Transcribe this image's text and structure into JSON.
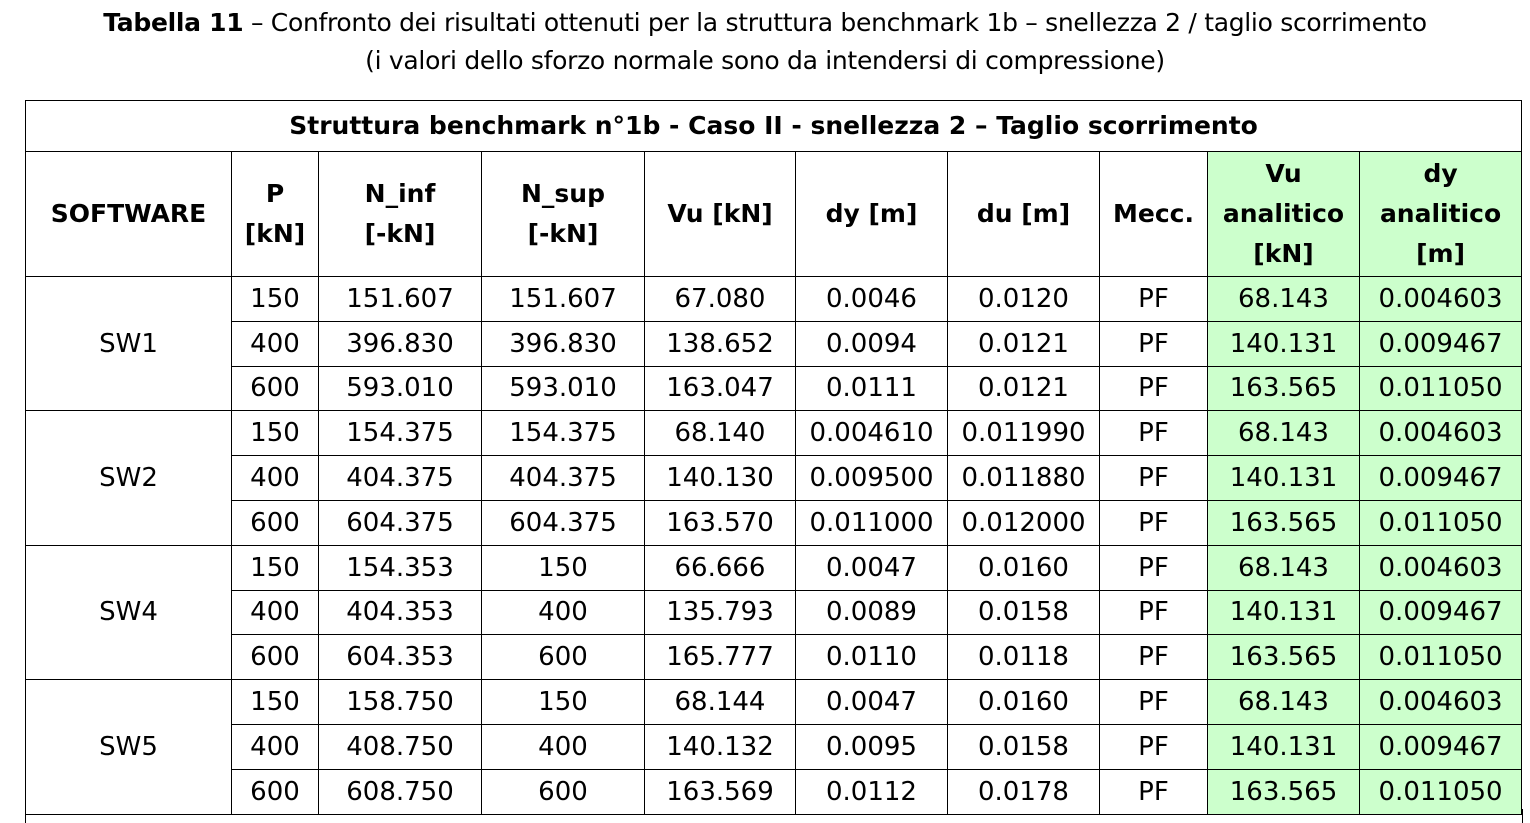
{
  "caption": {
    "label": "Tabella 11",
    "line1": " – Confronto dei risultati ottenuti per la struttura benchmark 1b – snellezza 2 / taglio scorrimento",
    "line2": "(i valori dello sforzo normale sono da intendersi di compressione)"
  },
  "table": {
    "title": "Struttura benchmark n°1b - Caso II - snellezza 2 – Taglio scorrimento",
    "headers": [
      [
        "SOFTWARE"
      ],
      [
        "P",
        "[kN]"
      ],
      [
        "N_inf",
        "[-kN]"
      ],
      [
        "N_sup",
        "[-kN]"
      ],
      [
        "Vu [kN]"
      ],
      [
        "dy [m]"
      ],
      [
        "du [m]"
      ],
      [
        "Mecc."
      ],
      [
        "Vu",
        "analitico",
        "[kN]"
      ],
      [
        "dy",
        "analitico",
        "[m]"
      ]
    ],
    "groups": [
      {
        "software": "SW1",
        "rows": [
          [
            "150",
            "151.607",
            "151.607",
            "67.080",
            "0.0046",
            "0.0120",
            "PF",
            "68.143",
            "0.004603"
          ],
          [
            "400",
            "396.830",
            "396.830",
            "138.652",
            "0.0094",
            "0.0121",
            "PF",
            "140.131",
            "0.009467"
          ],
          [
            "600",
            "593.010",
            "593.010",
            "163.047",
            "0.0111",
            "0.0121",
            "PF",
            "163.565",
            "0.011050"
          ]
        ]
      },
      {
        "software": "SW2",
        "rows": [
          [
            "150",
            "154.375",
            "154.375",
            "68.140",
            "0.004610",
            "0.011990",
            "PF",
            "68.143",
            "0.004603"
          ],
          [
            "400",
            "404.375",
            "404.375",
            "140.130",
            "0.009500",
            "0.011880",
            "PF",
            "140.131",
            "0.009467"
          ],
          [
            "600",
            "604.375",
            "604.375",
            "163.570",
            "0.011000",
            "0.012000",
            "PF",
            "163.565",
            "0.011050"
          ]
        ]
      },
      {
        "software": "SW4",
        "rows": [
          [
            "150",
            "154.353",
            "150",
            "66.666",
            "0.0047",
            "0.0160",
            "PF",
            "68.143",
            "0.004603"
          ],
          [
            "400",
            "404.353",
            "400",
            "135.793",
            "0.0089",
            "0.0158",
            "PF",
            "140.131",
            "0.009467"
          ],
          [
            "600",
            "604.353",
            "600",
            "165.777",
            "0.0110",
            "0.0118",
            "PF",
            "163.565",
            "0.011050"
          ]
        ]
      },
      {
        "software": "SW5",
        "rows": [
          [
            "150",
            "158.750",
            "150",
            "68.144",
            "0.0047",
            "0.0160",
            "PF",
            "68.143",
            "0.004603"
          ],
          [
            "400",
            "408.750",
            "400",
            "140.132",
            "0.0095",
            "0.0158",
            "PF",
            "140.131",
            "0.009467"
          ],
          [
            "600",
            "608.750",
            "600",
            "163.569",
            "0.0112",
            "0.0178",
            "PF",
            "163.565",
            "0.011050"
          ]
        ]
      }
    ],
    "analytic_fill": "#ccffcc"
  }
}
